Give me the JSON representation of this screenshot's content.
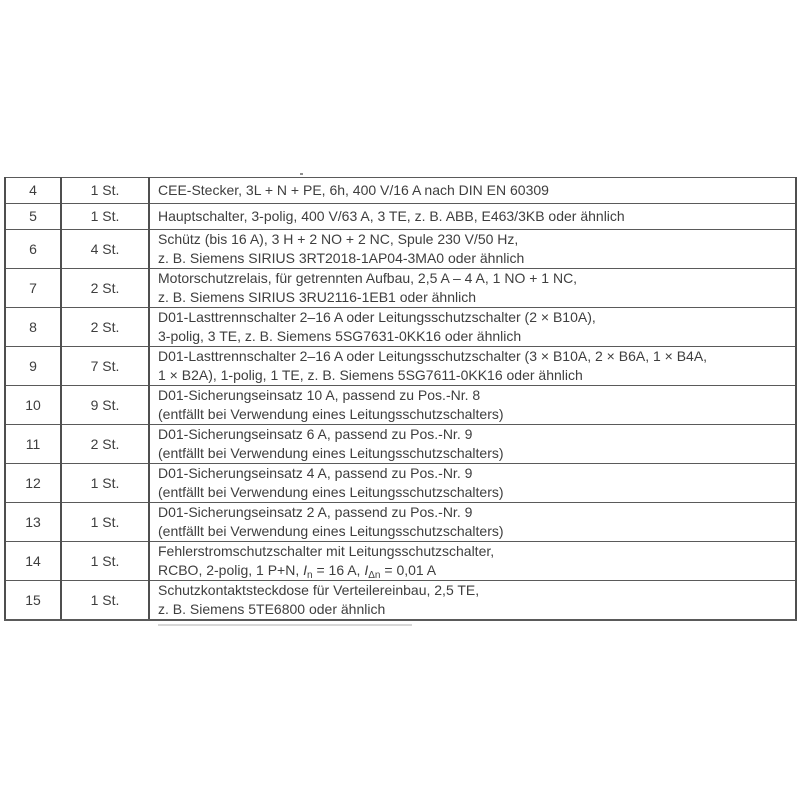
{
  "document": {
    "language": "de",
    "text_color": "#3e3e3e",
    "border_color": "#4f4f4f",
    "background_color": "#ffffff"
  },
  "table": {
    "quantity_unit": "St.",
    "rows": [
      {
        "pos": "4",
        "qty": "1 St.",
        "lines": [
          "CEE-Stecker, 3L + N + PE, 6h, 400 V/16 A nach DIN EN 60309"
        ]
      },
      {
        "pos": "5",
        "qty": "1 St.",
        "lines": [
          "Hauptschalter, 3-polig, 400 V/63 A, 3 TE, z. B. ABB, E463/3KB oder ähnlich"
        ]
      },
      {
        "pos": "6",
        "qty": "4 St.",
        "lines": [
          "Schütz (bis 16 A), 3 H + 2 NO + 2 NC, Spule 230 V/50 Hz,",
          "z. B. Siemens SIRIUS 3RT2018-1AP04-3MA0 oder ähnlich"
        ]
      },
      {
        "pos": "7",
        "qty": "2 St.",
        "lines": [
          "Motorschutzrelais, für getrennten Aufbau, 2,5 A – 4 A, 1 NO + 1 NC,",
          "z. B. Siemens SIRIUS 3RU2116-1EB1 oder ähnlich"
        ]
      },
      {
        "pos": "8",
        "qty": "2 St.",
        "lines": [
          "D01-Lasttrennschalter 2–16 A oder Leitungsschutzschalter (2 × B10A),",
          "3-polig, 3 TE, z. B. Siemens 5SG7631-0KK16 oder ähnlich"
        ]
      },
      {
        "pos": "9",
        "qty": "7 St.",
        "lines": [
          "D01-Lasttrennschalter 2–16 A oder Leitungsschutzschalter (3 × B10A, 2 × B6A, 1 × B4A,",
          "1 × B2A), 1-polig, 1 TE, z. B. Siemens 5SG7611-0KK16 oder ähnlich"
        ]
      },
      {
        "pos": "10",
        "qty": "9 St.",
        "lines": [
          "D01-Sicherungseinsatz 10 A, passend zu Pos.-Nr. 8",
          "(entfällt bei Verwendung eines Leitungsschutzschalters)"
        ]
      },
      {
        "pos": "11",
        "qty": "2 St.",
        "lines": [
          "D01-Sicherungseinsatz 6 A, passend zu Pos.-Nr. 9",
          "(entfällt bei Verwendung eines Leitungsschutzschalters)"
        ]
      },
      {
        "pos": "12",
        "qty": "1 St.",
        "lines": [
          "D01-Sicherungseinsatz 4 A, passend zu Pos.-Nr. 9",
          "(entfällt bei Verwendung eines Leitungsschutzschalters)"
        ]
      },
      {
        "pos": "13",
        "qty": "1 St.",
        "lines": [
          "D01-Sicherungseinsatz 2 A, passend zu Pos.-Nr. 9",
          "(entfällt bei Verwendung eines Leitungsschutzschalters)"
        ]
      },
      {
        "pos": "14",
        "qty": "1 St.",
        "lines": [
          "Fehlerstromschutzschalter mit Leitungsschutzschalter,"
        ],
        "line2_parts": [
          {
            "t": "RCBO, 2-polig, 1 P+N, ",
            "s": "normal"
          },
          {
            "t": "I",
            "s": "italic"
          },
          {
            "t": "n",
            "s": "sub"
          },
          {
            "t": " = 16 A, ",
            "s": "normal"
          },
          {
            "t": "I",
            "s": "italic"
          },
          {
            "t": "Δn",
            "s": "sub"
          },
          {
            "t": " = 0,01 A",
            "s": "normal"
          }
        ]
      },
      {
        "pos": "15",
        "qty": "1 St.",
        "lines": [
          "Schutzkontaktsteckdose für Verteilereinbau, 2,5 TE,",
          "z. B. Siemens 5TE6800 oder ähnlich"
        ]
      }
    ]
  }
}
